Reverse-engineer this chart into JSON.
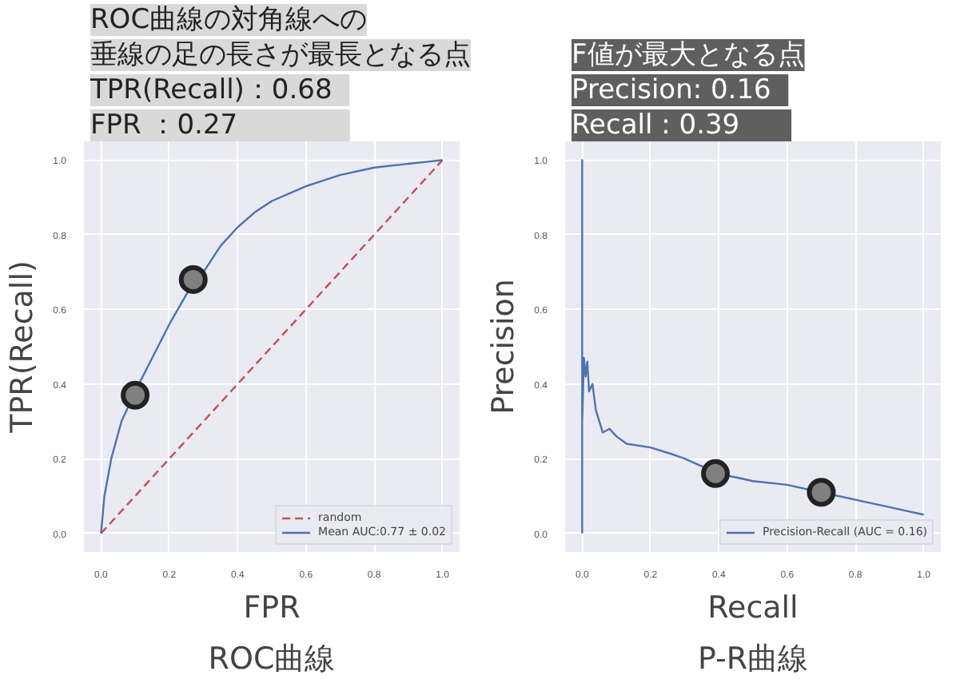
{
  "chart_data": [
    {
      "type": "line",
      "title": "ROC曲線",
      "xlabel": "FPR",
      "ylabel": "TPR(Recall)",
      "annotations": [
        "ROC曲線の対角線への",
        "垂線の足の長さが最長となる点",
        "  TPR(Recall)：0.68",
        "  FPR            ：0.27"
      ],
      "xlim": [
        -0.05,
        1.05
      ],
      "ylim": [
        -0.05,
        1.05
      ],
      "xticks": [
        {
          "value": 0,
          "label": "0.0"
        },
        {
          "value": 0.2,
          "label": "0.2"
        },
        {
          "value": 0.4,
          "label": "0.4"
        },
        {
          "value": 0.6,
          "label": "0.6"
        },
        {
          "value": 0.8,
          "label": "0.8"
        },
        {
          "value": 1,
          "label": "1.0"
        }
      ],
      "yticks": [
        {
          "value": 0,
          "label": "0.0"
        },
        {
          "value": 0.2,
          "label": "0.2"
        },
        {
          "value": 0.4,
          "label": "0.4"
        },
        {
          "value": 0.6,
          "label": "0.6"
        },
        {
          "value": 0.8,
          "label": "0.8"
        },
        {
          "value": 1,
          "label": "1.0"
        }
      ],
      "grid": true,
      "legend": "bottom right",
      "series": [
        {
          "name": "random",
          "color": "#c44e52",
          "line_style": "dashed",
          "x": [
            0,
            1
          ],
          "values": [
            0,
            1
          ]
        },
        {
          "name": "Mean AUC:0.77 ± 0.02",
          "color": "#4c72b0",
          "x": [
            0,
            0.01,
            0.03,
            0.06,
            0.1,
            0.15,
            0.2,
            0.25,
            0.3,
            0.35,
            0.4,
            0.45,
            0.5,
            0.55,
            0.6,
            0.7,
            0.8,
            0.9,
            1
          ],
          "values": [
            0,
            0.1,
            0.2,
            0.3,
            0.38,
            0.47,
            0.56,
            0.64,
            0.7,
            0.77,
            0.82,
            0.86,
            0.89,
            0.91,
            0.93,
            0.96,
            0.98,
            0.99,
            1
          ]
        },
        {
          "type": "scatter",
          "color": "#808080",
          "x": [
            0.1,
            0.27
          ],
          "values": [
            0.37,
            0.68
          ]
        }
      ]
    },
    {
      "type": "line",
      "title": "P-R曲線",
      "xlabel": "Recall",
      "ylabel": "Precision",
      "annotations": [
        "F値が最大となる点",
        "  Precision: 0.16",
        "  Recall     : 0.39"
      ],
      "xlim": [
        -0.05,
        1.05
      ],
      "ylim": [
        -0.05,
        1.05
      ],
      "xticks": [
        {
          "value": 0,
          "label": "0.0"
        },
        {
          "value": 0.2,
          "label": "0.2"
        },
        {
          "value": 0.4,
          "label": "0.4"
        },
        {
          "value": 0.6,
          "label": "0.6"
        },
        {
          "value": 0.8,
          "label": "0.8"
        },
        {
          "value": 1,
          "label": "1.0"
        }
      ],
      "yticks": [
        {
          "value": 0,
          "label": "0.0"
        },
        {
          "value": 0.2,
          "label": "0.2"
        },
        {
          "value": 0.4,
          "label": "0.4"
        },
        {
          "value": 0.6,
          "label": "0.6"
        },
        {
          "value": 0.8,
          "label": "0.8"
        },
        {
          "value": 1,
          "label": "1.0"
        }
      ],
      "grid": true,
      "legend": "bottom right",
      "series": [
        {
          "name": "Precision-Recall (AUC = 0.16)",
          "color": "#4c72b0",
          "x": [
            0,
            0,
            0,
            0.005,
            0.01,
            0.015,
            0.02,
            0.03,
            0.04,
            0.05,
            0.06,
            0.08,
            0.1,
            0.13,
            0.2,
            0.27,
            0.3,
            0.35,
            0.39,
            0.45,
            0.5,
            0.6,
            0.7,
            0.8,
            0.9,
            0.95,
            1
          ],
          "values": [
            0,
            1,
            0.3,
            0.47,
            0.42,
            0.46,
            0.38,
            0.4,
            0.33,
            0.3,
            0.27,
            0.28,
            0.26,
            0.24,
            0.23,
            0.21,
            0.2,
            0.18,
            0.16,
            0.15,
            0.14,
            0.13,
            0.11,
            0.09,
            0.07,
            0.06,
            0.05
          ]
        },
        {
          "type": "scatter",
          "color": "#808080",
          "x": [
            0.39,
            0.7
          ],
          "values": [
            0.16,
            0.11
          ]
        }
      ]
    }
  ]
}
